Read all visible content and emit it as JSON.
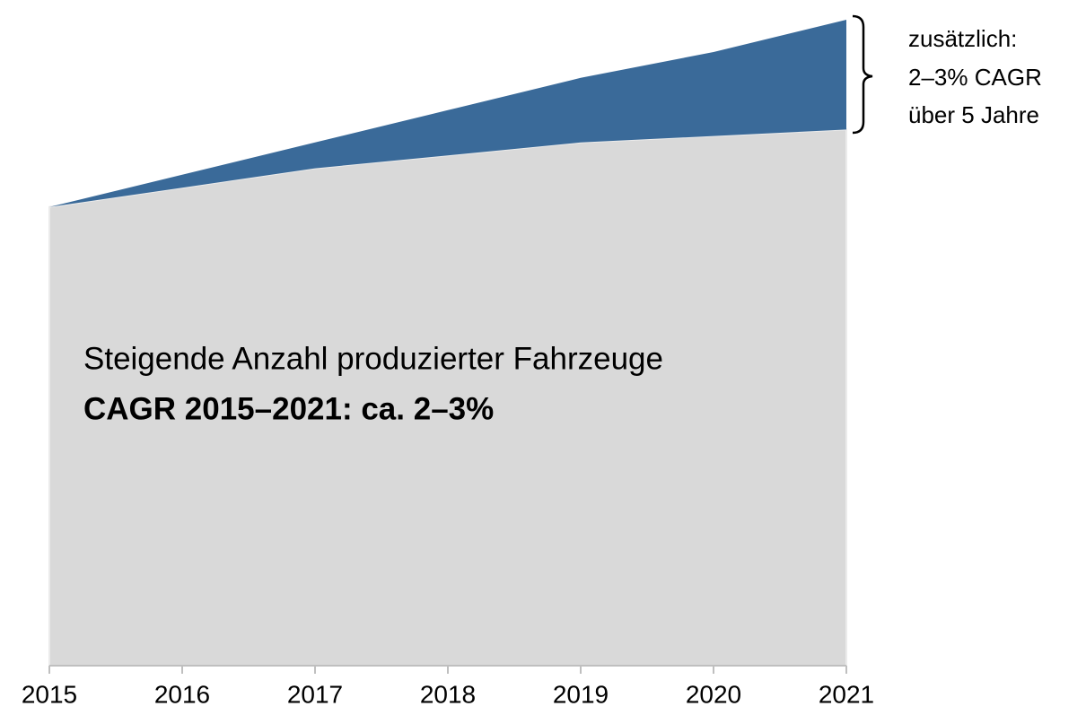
{
  "chart_data": {
    "type": "area",
    "x": [
      2015,
      2016,
      2017,
      2018,
      2019,
      2020,
      2021
    ],
    "xlim": [
      2015,
      2021
    ],
    "xticks": [
      2015,
      2016,
      2017,
      2018,
      2019,
      2020,
      2021
    ],
    "ylim": [
      0,
      100
    ],
    "stacked": true,
    "series": [
      {
        "name": "Steigende Anzahl produzierter Fahrzeuge",
        "color": "#d9d9d9",
        "values": [
          71,
          74,
          77,
          79,
          81,
          82,
          83
        ]
      },
      {
        "name": "zusätzlich",
        "color": "#3a6a99",
        "values": [
          0,
          2,
          4,
          7,
          10,
          13,
          17
        ]
      }
    ],
    "annotations": [
      {
        "lines": [
          "Steigende Anzahl produzierter Fahrzeuge",
          "CAGR 2015–2021: ca. 2–3%"
        ]
      },
      {
        "lines": [
          "zusätzlich:",
          "2–3% CAGR",
          "über 5 Jahre"
        ]
      }
    ]
  }
}
